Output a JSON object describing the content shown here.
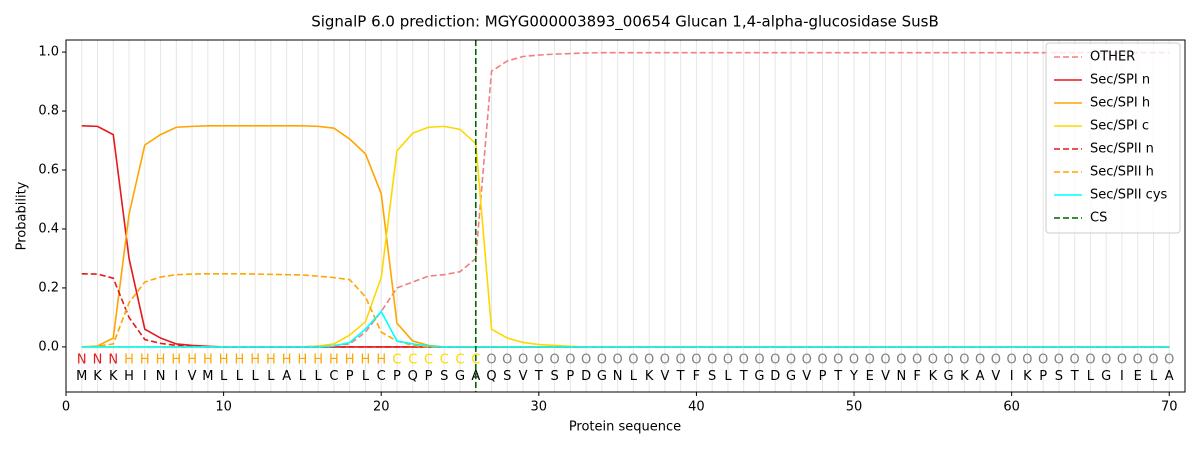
{
  "chart_data": {
    "type": "line",
    "title": "SignalP 6.0 prediction: MGYG000003893_00654 Glucan 1,4-alpha-glucosidase SusB",
    "xlabel": "Protein sequence",
    "ylabel": "Probability",
    "x": [
      1,
      2,
      3,
      4,
      5,
      6,
      7,
      8,
      9,
      10,
      11,
      12,
      13,
      14,
      15,
      16,
      17,
      18,
      19,
      20,
      21,
      22,
      23,
      24,
      25,
      26,
      27,
      28,
      29,
      30,
      31,
      32,
      33,
      34,
      35,
      36,
      37,
      38,
      39,
      40,
      41,
      42,
      43,
      44,
      45,
      46,
      47,
      48,
      49,
      50,
      51,
      52,
      53,
      54,
      55,
      56,
      57,
      58,
      59,
      60,
      61,
      62,
      63,
      64,
      65,
      66,
      67,
      68,
      69,
      70
    ],
    "sequence": [
      "M",
      "K",
      "K",
      "H",
      "I",
      "N",
      "I",
      "V",
      "M",
      "L",
      "L",
      "L",
      "L",
      "A",
      "L",
      "L",
      "C",
      "P",
      "L",
      "C",
      "P",
      "Q",
      "P",
      "S",
      "G",
      "A",
      "Q",
      "S",
      "V",
      "T",
      "S",
      "P",
      "D",
      "G",
      "N",
      "L",
      "K",
      "V",
      "T",
      "F",
      "S",
      "L",
      "T",
      "G",
      "D",
      "G",
      "V",
      "P",
      "T",
      "Y",
      "E",
      "V",
      "N",
      "F",
      "K",
      "G",
      "K",
      "A",
      "V",
      "I",
      "K",
      "P",
      "S",
      "T",
      "L",
      "G",
      "I",
      "E",
      "L",
      "A"
    ],
    "labels": [
      "N",
      "N",
      "N",
      "H",
      "H",
      "H",
      "H",
      "H",
      "H",
      "H",
      "H",
      "H",
      "H",
      "H",
      "H",
      "H",
      "H",
      "H",
      "H",
      "H",
      "C",
      "C",
      "C",
      "C",
      "C",
      "C",
      "O",
      "O",
      "O",
      "O",
      "O",
      "O",
      "O",
      "O",
      "O",
      "O",
      "O",
      "O",
      "O",
      "O",
      "O",
      "O",
      "O",
      "O",
      "O",
      "O",
      "O",
      "O",
      "O",
      "O",
      "O",
      "O",
      "O",
      "O",
      "O",
      "O",
      "O",
      "O",
      "O",
      "O",
      "O",
      "O",
      "O",
      "O",
      "O",
      "O",
      "O",
      "O",
      "O",
      "O"
    ],
    "label_colors": {
      "N": "#e41a1c",
      "H": "#ffa500",
      "C": "#ffd700",
      "O": "#808080"
    },
    "series": [
      {
        "name": "OTHER",
        "color": "#f08080",
        "dash": true,
        "values": [
          0,
          0,
          0,
          0,
          0,
          0,
          0,
          0,
          0,
          0,
          0,
          0,
          0,
          0,
          0,
          0.003,
          0.005,
          0.01,
          0.05,
          0.12,
          0.2,
          0.22,
          0.24,
          0.245,
          0.255,
          0.3,
          0.935,
          0.97,
          0.985,
          0.99,
          0.993,
          0.995,
          0.997,
          0.998,
          0.998,
          0.998,
          0.998,
          0.998,
          0.998,
          0.998,
          0.998,
          0.998,
          0.998,
          0.998,
          0.998,
          0.998,
          0.998,
          0.998,
          0.998,
          0.998,
          0.998,
          0.998,
          0.998,
          0.998,
          0.998,
          0.998,
          0.998,
          0.998,
          0.998,
          0.998,
          0.998,
          0.998,
          0.998,
          0.998,
          0.998,
          0.998,
          0.998,
          0.998,
          0.998,
          0.998
        ]
      },
      {
        "name": "Sec/SPI n",
        "color": "#e41a1c",
        "dash": false,
        "values": [
          0.75,
          0.748,
          0.72,
          0.3,
          0.06,
          0.03,
          0.01,
          0.005,
          0.002,
          0,
          0,
          0,
          0,
          0,
          0,
          0,
          0,
          0,
          0,
          0,
          0,
          0,
          0,
          0,
          0,
          0,
          0,
          0,
          0,
          0,
          0,
          0,
          0,
          0,
          0,
          0,
          0,
          0,
          0,
          0,
          0,
          0,
          0,
          0,
          0,
          0,
          0,
          0,
          0,
          0,
          0,
          0,
          0,
          0,
          0,
          0,
          0,
          0,
          0,
          0,
          0,
          0,
          0,
          0,
          0,
          0,
          0,
          0,
          0,
          0
        ]
      },
      {
        "name": "Sec/SPI h",
        "color": "#ffa500",
        "dash": false,
        "values": [
          0,
          0.003,
          0.03,
          0.45,
          0.685,
          0.72,
          0.745,
          0.748,
          0.75,
          0.75,
          0.75,
          0.75,
          0.75,
          0.75,
          0.75,
          0.748,
          0.742,
          0.705,
          0.655,
          0.52,
          0.08,
          0.02,
          0.005,
          0,
          0,
          0,
          0,
          0,
          0,
          0,
          0,
          0,
          0,
          0,
          0,
          0,
          0,
          0,
          0,
          0,
          0,
          0,
          0,
          0,
          0,
          0,
          0,
          0,
          0,
          0,
          0,
          0,
          0,
          0,
          0,
          0,
          0,
          0,
          0,
          0,
          0,
          0,
          0,
          0,
          0,
          0,
          0,
          0,
          0,
          0
        ]
      },
      {
        "name": "Sec/SPI c",
        "color": "#ffd700",
        "dash": false,
        "values": [
          0,
          0,
          0,
          0,
          0,
          0,
          0,
          0,
          0,
          0,
          0,
          0,
          0,
          0,
          0,
          0.003,
          0.01,
          0.04,
          0.085,
          0.235,
          0.665,
          0.725,
          0.745,
          0.748,
          0.738,
          0.69,
          0.06,
          0.03,
          0.015,
          0.008,
          0.005,
          0.002,
          0,
          0,
          0,
          0,
          0,
          0,
          0,
          0,
          0,
          0,
          0,
          0,
          0,
          0,
          0,
          0,
          0,
          0,
          0,
          0,
          0,
          0,
          0,
          0,
          0,
          0,
          0,
          0,
          0,
          0,
          0,
          0,
          0,
          0,
          0,
          0,
          0,
          0
        ]
      },
      {
        "name": "Sec/SPII n",
        "color": "#e41a1c",
        "dash": true,
        "values": [
          0.248,
          0.247,
          0.233,
          0.1,
          0.025,
          0.012,
          0.005,
          0.002,
          0,
          0,
          0,
          0,
          0,
          0,
          0,
          0,
          0,
          0,
          0,
          0,
          0,
          0,
          0,
          0,
          0,
          0,
          0,
          0,
          0,
          0,
          0,
          0,
          0,
          0,
          0,
          0,
          0,
          0,
          0,
          0,
          0,
          0,
          0,
          0,
          0,
          0,
          0,
          0,
          0,
          0,
          0,
          0,
          0,
          0,
          0,
          0,
          0,
          0,
          0,
          0,
          0,
          0,
          0,
          0,
          0,
          0,
          0,
          0,
          0,
          0
        ]
      },
      {
        "name": "Sec/SPII h",
        "color": "#ffa500",
        "dash": true,
        "values": [
          0,
          0.002,
          0.01,
          0.15,
          0.22,
          0.237,
          0.245,
          0.247,
          0.248,
          0.248,
          0.248,
          0.247,
          0.246,
          0.245,
          0.244,
          0.24,
          0.235,
          0.228,
          0.17,
          0.05,
          0.02,
          0.005,
          0,
          0,
          0,
          0,
          0,
          0,
          0,
          0,
          0,
          0,
          0,
          0,
          0,
          0,
          0,
          0,
          0,
          0,
          0,
          0,
          0,
          0,
          0,
          0,
          0,
          0,
          0,
          0,
          0,
          0,
          0,
          0,
          0,
          0,
          0,
          0,
          0,
          0,
          0,
          0,
          0,
          0,
          0,
          0,
          0,
          0,
          0,
          0
        ]
      },
      {
        "name": "Sec/SPII cys",
        "color": "#00ffff",
        "dash": false,
        "values": [
          0,
          0,
          0,
          0,
          0,
          0,
          0,
          0,
          0,
          0,
          0,
          0,
          0,
          0,
          0,
          0,
          0.003,
          0.015,
          0.06,
          0.12,
          0.02,
          0.01,
          0.003,
          0,
          0,
          0,
          0,
          0,
          0,
          0,
          0,
          0,
          0,
          0,
          0,
          0,
          0,
          0,
          0,
          0,
          0,
          0,
          0,
          0,
          0,
          0,
          0,
          0,
          0,
          0,
          0,
          0,
          0,
          0,
          0,
          0,
          0,
          0,
          0,
          0,
          0,
          0,
          0,
          0,
          0,
          0,
          0,
          0,
          0,
          0
        ]
      }
    ],
    "cs": {
      "name": "CS",
      "x": 26,
      "color": "#006400"
    },
    "xlim": [
      0,
      71
    ],
    "ylim": [
      -0.153,
      1.041
    ],
    "xticks": [
      0,
      10,
      20,
      30,
      40,
      50,
      60,
      70
    ],
    "yticks": [
      {
        "value": 0,
        "label": "0.0"
      },
      {
        "value": 0.2,
        "label": "0.2"
      },
      {
        "value": 0.4,
        "label": "0.4"
      },
      {
        "value": 0.6,
        "label": "0.6"
      },
      {
        "value": 0.8,
        "label": "0.8"
      },
      {
        "value": 1,
        "label": "1.0"
      }
    ],
    "grid": true,
    "legend": "upper right"
  }
}
